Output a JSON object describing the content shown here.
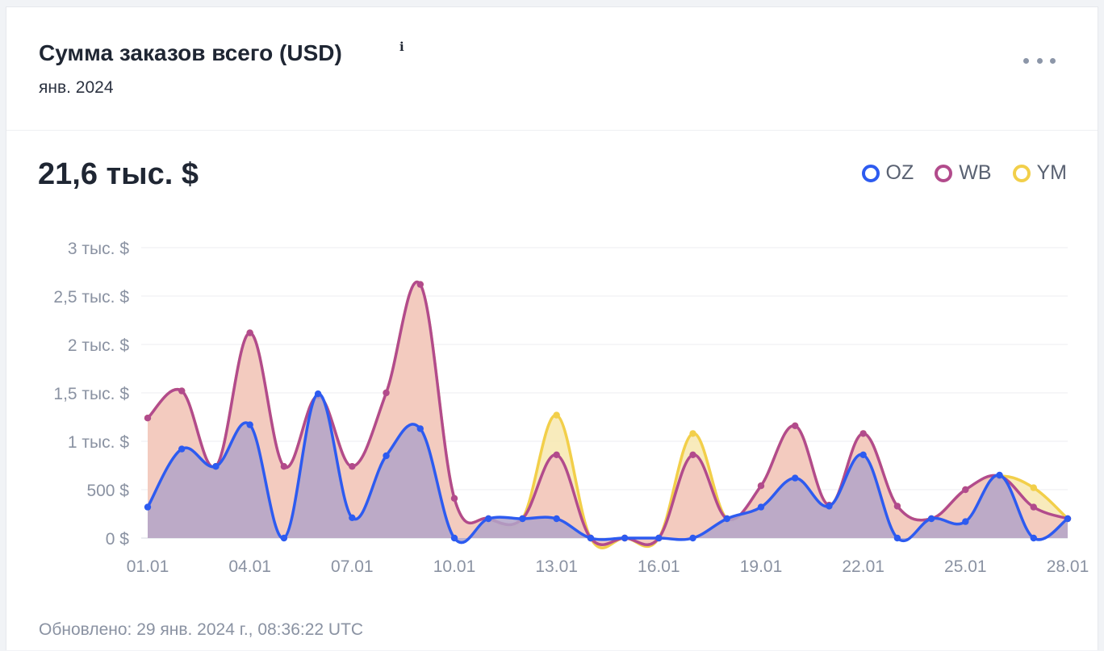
{
  "header": {
    "title": "Сумма заказов всего (USD)",
    "info_icon": "info-icon",
    "subtitle": "янв. 2024",
    "more_icon": "more-horizontal-icon"
  },
  "total": "21,6 тыс. $",
  "updated": "Обновлено: 29 янв. 2024 г., 08:36:22 UTC",
  "chart_data": {
    "type": "area",
    "title": "",
    "xlabel": "",
    "ylabel": "",
    "ylim": [
      0,
      3000
    ],
    "grid": true,
    "legend_position": "top-right",
    "x": [
      "01.01",
      "02.01",
      "03.01",
      "04.01",
      "05.01",
      "06.01",
      "07.01",
      "08.01",
      "09.01",
      "10.01",
      "11.01",
      "12.01",
      "13.01",
      "14.01",
      "15.01",
      "16.01",
      "17.01",
      "18.01",
      "19.01",
      "20.01",
      "21.01",
      "22.01",
      "23.01",
      "24.01",
      "25.01",
      "26.01",
      "27.01",
      "28.01"
    ],
    "x_tick_labels": [
      "01.01",
      "04.01",
      "07.01",
      "10.01",
      "13.01",
      "16.01",
      "19.01",
      "22.01",
      "25.01",
      "28.01"
    ],
    "y_tick_values": [
      0,
      500,
      1000,
      1500,
      2000,
      2500,
      3000
    ],
    "y_tick_labels": [
      "0 $",
      "500 $",
      "1 тыс. $",
      "1,5 тыс. $",
      "2 тыс. $",
      "2,5 тыс. $",
      "3 тыс. $"
    ],
    "series": [
      {
        "name": "YM",
        "color": "#f2cf4a",
        "fill": "#f7e8b0",
        "values": [
          1240,
          1520,
          740,
          2120,
          740,
          1470,
          740,
          1500,
          2620,
          410,
          200,
          200,
          1270,
          0,
          0,
          0,
          1080,
          200,
          540,
          1160,
          340,
          1080,
          330,
          200,
          500,
          640,
          520,
          200
        ]
      },
      {
        "name": "WB",
        "color": "#b24b8c",
        "fill": "#f2c6c0",
        "values": [
          1240,
          1520,
          740,
          2120,
          740,
          1470,
          740,
          1500,
          2620,
          410,
          200,
          200,
          860,
          0,
          0,
          0,
          860,
          200,
          540,
          1160,
          340,
          1080,
          330,
          200,
          500,
          640,
          320,
          200
        ]
      },
      {
        "name": "OZ",
        "color": "#2d5bf0",
        "fill": "#b1a4c8",
        "values": [
          320,
          920,
          740,
          1170,
          0,
          1490,
          210,
          850,
          1130,
          0,
          200,
          200,
          200,
          0,
          0,
          0,
          0,
          200,
          320,
          620,
          330,
          860,
          0,
          200,
          170,
          650,
          0,
          200
        ]
      }
    ]
  }
}
